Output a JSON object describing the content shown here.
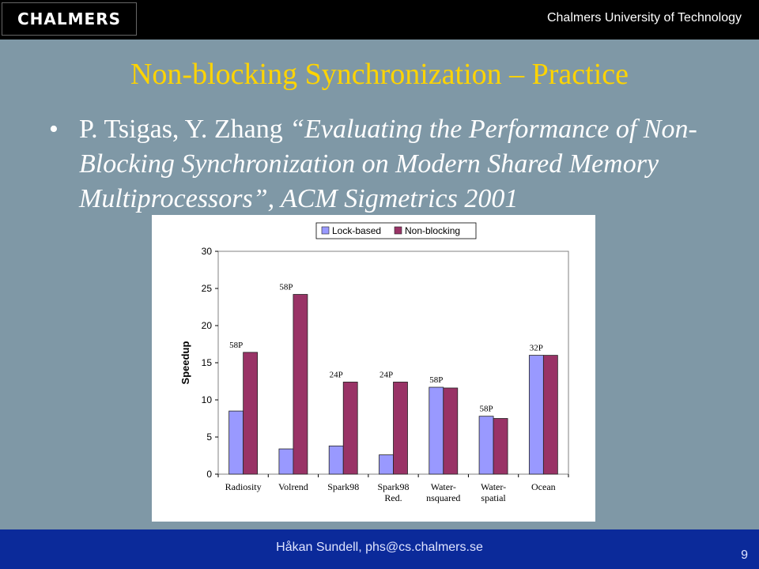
{
  "header": {
    "logo_text": "CHALMERS",
    "university": "Chalmers University of Technology"
  },
  "slide": {
    "title": "Non-blocking Synchronization – Practice",
    "bullet_authors": "P. Tsigas, Y. Zhang",
    "bullet_paper": "“Evaluating the Performance of Non-Blocking Synchronization on Modern Shared Memory Multiprocessors”, ACM Sigmetrics 2001"
  },
  "footer": {
    "author": "Håkan Sundell, phs@cs.chalmers.se",
    "page_number": "9"
  },
  "colors": {
    "background": "#7f98a6",
    "title": "#ffd400",
    "lock_based": "#9999ff",
    "non_blocking": "#993366",
    "footer_bar": "#0b2a9a"
  },
  "chart_data": {
    "type": "bar",
    "categories": [
      "Radiosity",
      "Volrend",
      "Spark98",
      "Spark98\nRed.",
      "Water-\nnsquared",
      "Water-\nspatial",
      "Ocean"
    ],
    "series": [
      {
        "name": "Lock-based",
        "values": [
          8.5,
          3.4,
          3.8,
          2.6,
          11.7,
          7.8,
          16.0
        ]
      },
      {
        "name": "Non-blocking",
        "values": [
          16.4,
          24.2,
          12.4,
          12.4,
          11.6,
          7.5,
          16.0
        ]
      }
    ],
    "processor_labels": [
      "58P",
      "58P",
      "24P",
      "24P",
      "58P",
      "58P",
      "32P"
    ],
    "ylabel": "Speedup",
    "xlabel": "",
    "ylim": [
      0,
      30
    ],
    "yticks": [
      0,
      5,
      10,
      15,
      20,
      25,
      30
    ],
    "grid": false,
    "legend_position": "top"
  }
}
